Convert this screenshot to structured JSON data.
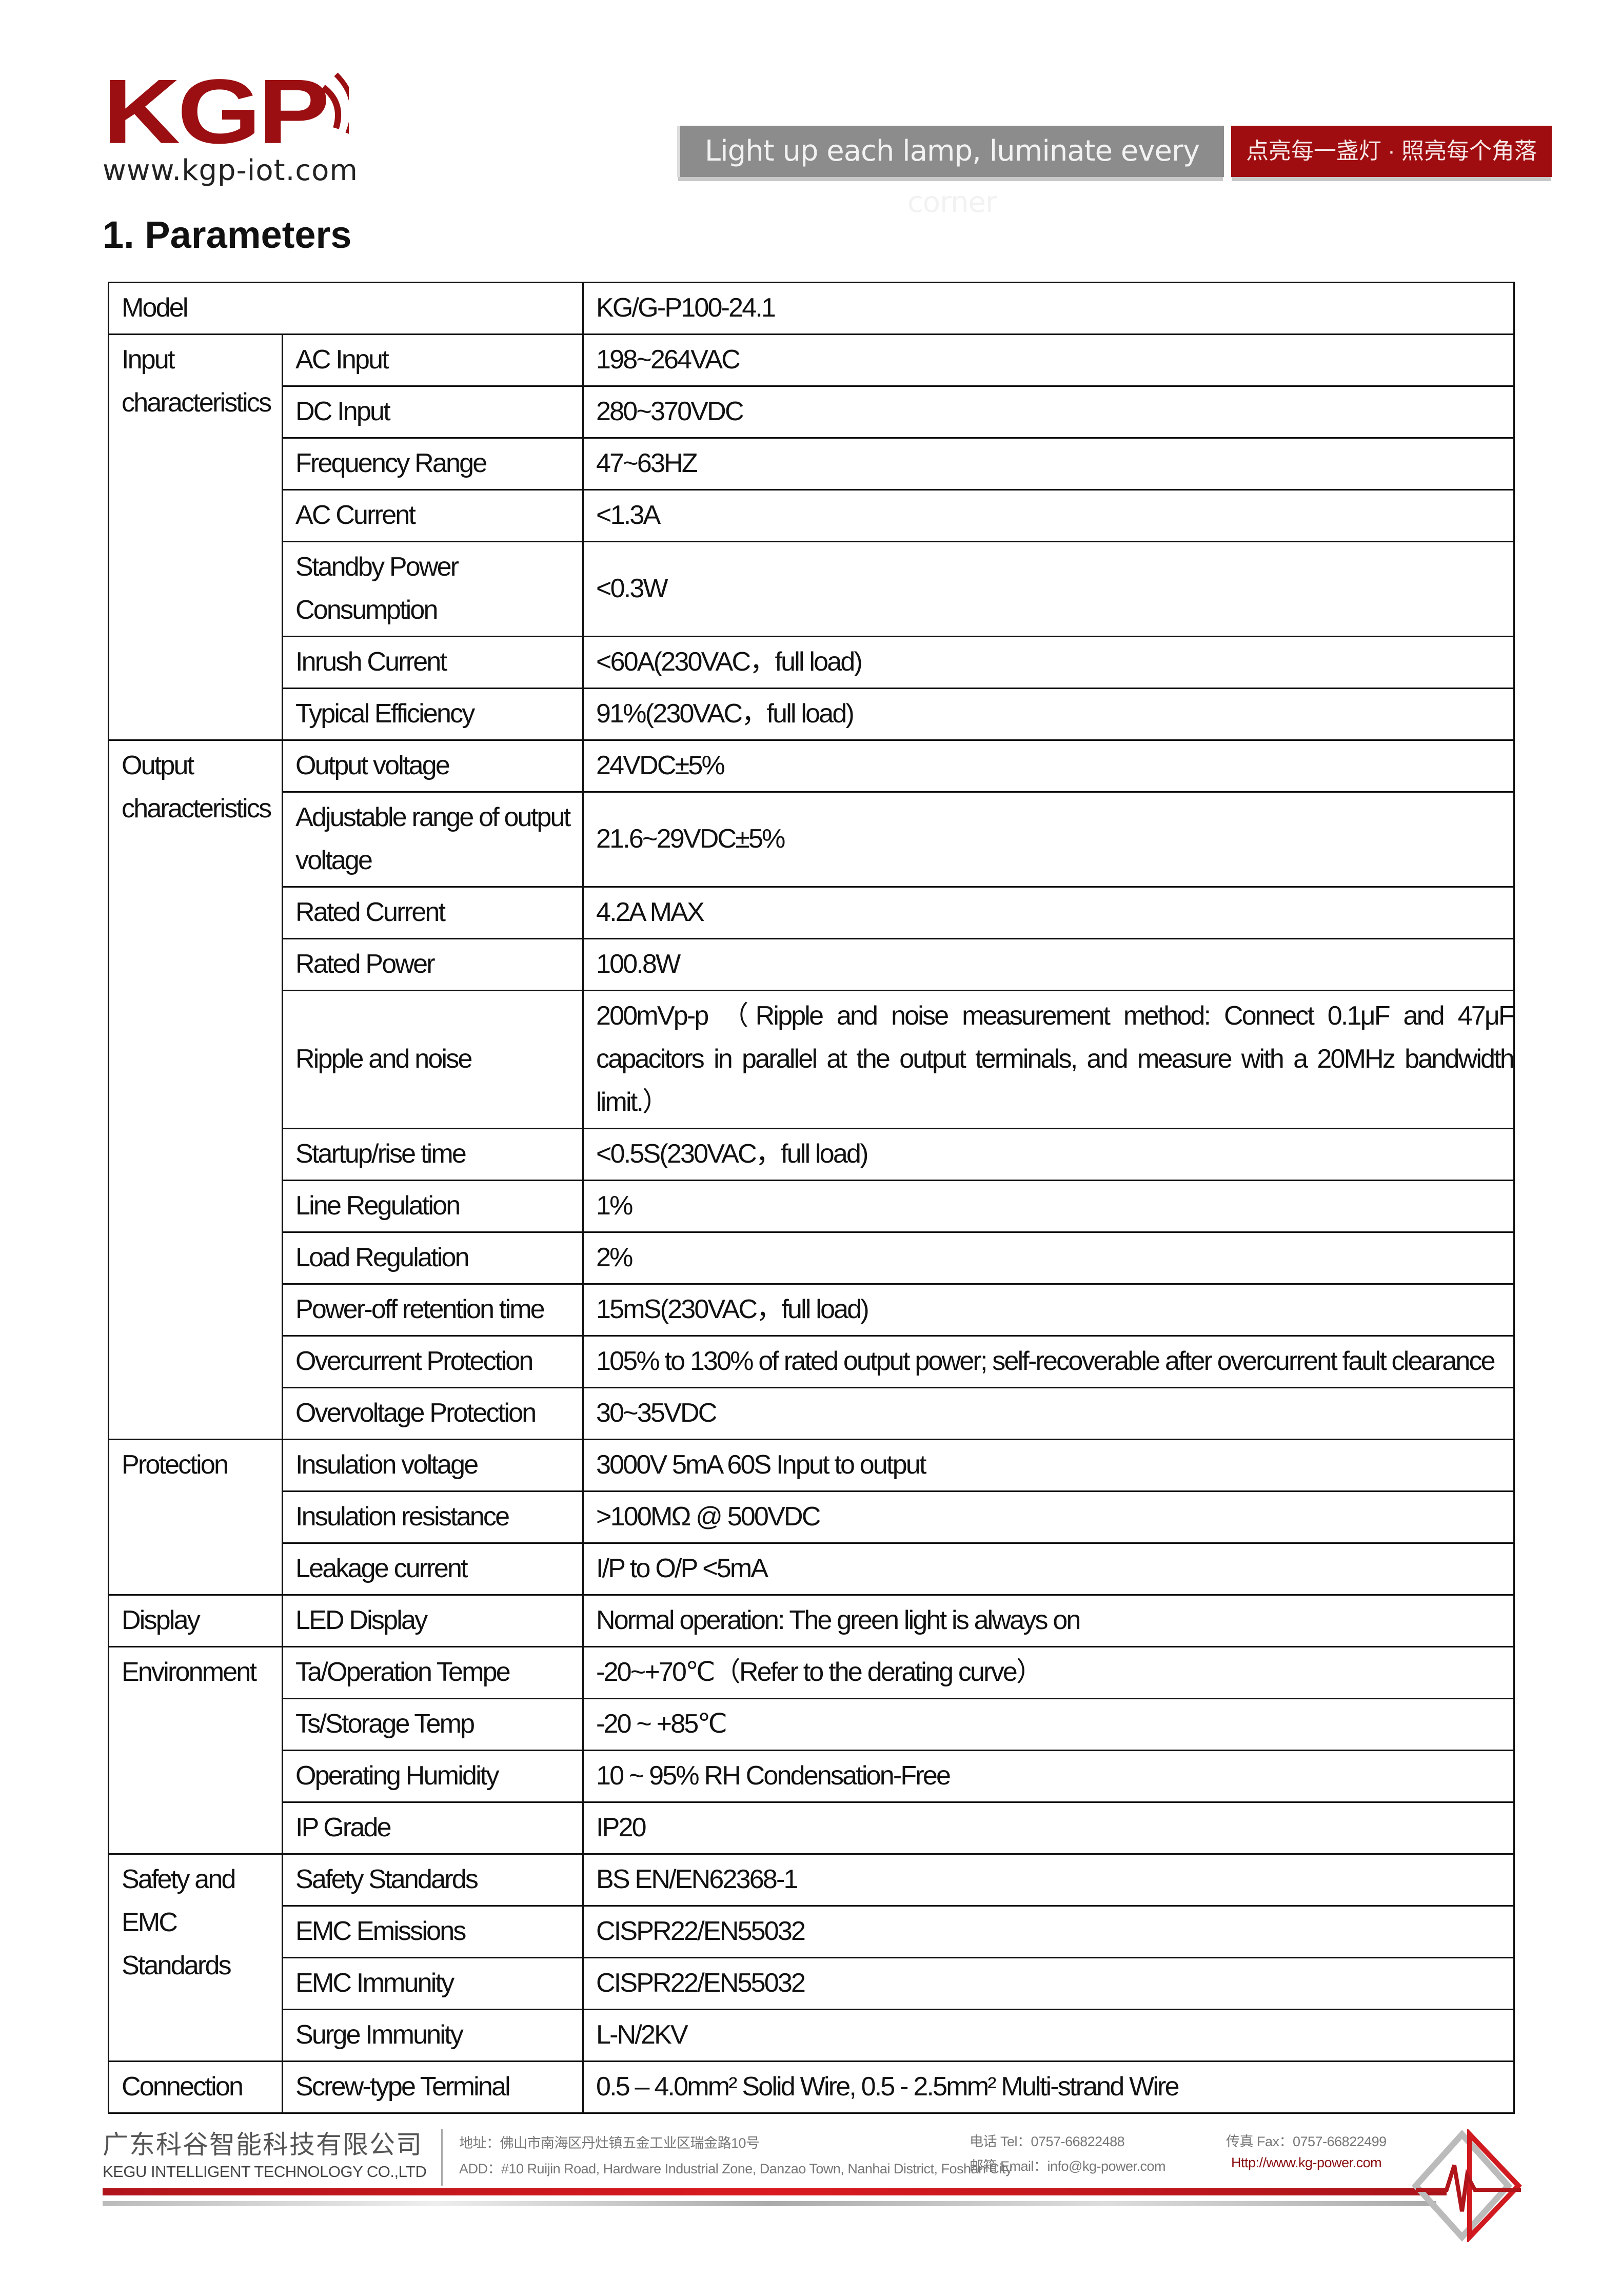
{
  "header": {
    "logo_text": "KGP",
    "website": "www.kgp-iot.com",
    "slogan_en": "Light up each lamp, luminate every corner",
    "slogan_cn": "点亮每一盏灯 · 照亮每个角落"
  },
  "colors": {
    "brand_red": "#a00d10",
    "banner_gray": "#8c8c8c"
  },
  "section_title": "1.  Parameters",
  "table": {
    "model_label": "Model",
    "model_value": "KG/G-P100-24.1",
    "groups": [
      {
        "label": "Input characteristics",
        "rows": [
          [
            "AC Input",
            "198~264VAC"
          ],
          [
            "DC Input",
            "280~370VDC"
          ],
          [
            "Frequency Range",
            "47~63HZ"
          ],
          [
            "AC Current",
            "<1.3A"
          ],
          [
            "Standby Power Consumption",
            "<0.3W"
          ],
          [
            "Inrush Current",
            "<60A(230VAC，full load)"
          ],
          [
            "Typical Efficiency",
            "91%(230VAC，full load)"
          ]
        ]
      },
      {
        "label": "Output characteristics",
        "rows": [
          [
            "Output voltage",
            "24VDC±5%"
          ],
          [
            "Adjustable range of output voltage",
            "21.6~29VDC±5%"
          ],
          [
            "Rated Current",
            "4.2A MAX"
          ],
          [
            "Rated Power",
            "100.8W"
          ],
          [
            "Ripple and noise",
            "200mVp-p （Ripple and noise measurement method: Connect 0.1μF and 47μF capacitors in parallel at the output terminals, and measure with a 20MHz bandwidth limit.）"
          ],
          [
            "Startup/rise time",
            "<0.5S(230VAC，full load)"
          ],
          [
            "Line Regulation",
            "1%"
          ],
          [
            "Load Regulation",
            "2%"
          ],
          [
            "Power-off retention time",
            "15mS(230VAC，full load)"
          ],
          [
            "Overcurrent Protection",
            "105% to 130% of rated output power; self-recoverable after overcurrent fault clearance"
          ],
          [
            "Overvoltage Protection",
            "30~35VDC"
          ]
        ]
      },
      {
        "label": "Protection",
        "rows": [
          [
            "Insulation voltage",
            "3000V 5mA 60S Input to output"
          ],
          [
            "Insulation resistance",
            ">100MΩ @ 500VDC"
          ],
          [
            "Leakage current",
            "I/P to O/P <5mA"
          ]
        ]
      },
      {
        "label": "Display",
        "rows": [
          [
            "LED Display",
            "Normal operation: The green light is always on"
          ]
        ]
      },
      {
        "label": "Environment",
        "rows": [
          [
            "Ta/Operation Tempe",
            "-20~+70℃（Refer to the derating curve）"
          ],
          [
            "Ts/Storage Temp",
            "-20 ~ +85℃"
          ],
          [
            "Operating Humidity",
            "10 ~ 95% RH Condensation-Free"
          ],
          [
            "IP Grade",
            "IP20"
          ]
        ]
      },
      {
        "label": "Safety and EMC Standards",
        "rows": [
          [
            "Safety Standards",
            "BS EN/EN62368-1"
          ],
          [
            "EMC Emissions",
            "CISPR22/EN55032"
          ],
          [
            "EMC Immunity",
            "CISPR22/EN55032"
          ],
          [
            "Surge Immunity",
            "L-N/2KV"
          ]
        ]
      },
      {
        "label": "Connection",
        "rows": [
          [
            "Screw-type Terminal",
            "0.5 – 4.0mm² Solid Wire, 0.5 - 2.5mm² Multi-strand Wire"
          ]
        ]
      }
    ]
  },
  "footer": {
    "company_cn": "广东科谷智能科技有限公司",
    "company_en": "KEGU INTELLIGENT TECHNOLOGY CO.,LTD",
    "address_cn": "地址：佛山市南海区丹灶镇五金工业区瑞金路10号",
    "address_en": "ADD：#10 Ruijin Road, Hardware Industrial Zone, Danzao Town, Nanhai District, Foshan City",
    "tel": "电话 Tel：0757-66822488",
    "email": "邮箱 Email：info@kg-power.com",
    "fax": "传真 Fax：0757-66822499",
    "website": "Http://www.kg-power.com"
  }
}
